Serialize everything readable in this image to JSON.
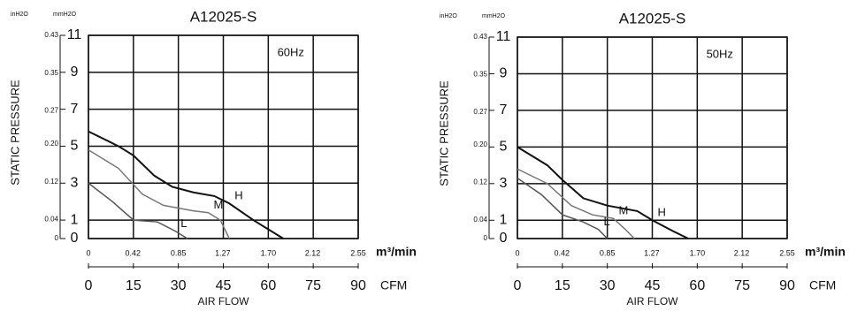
{
  "chart_data": [
    {
      "type": "line",
      "title": "A12025-S",
      "annotation": "60Hz",
      "ylabel": "STATIC PRESSURE",
      "y_unit": "mmH2O",
      "y2_unit": "inH2O",
      "x_unit": "CFM",
      "x2_unit": "m³/min",
      "xlabel": "AIR FLOW",
      "xlim": [
        0,
        90
      ],
      "xticks": [
        0,
        15,
        30,
        45,
        60,
        75,
        90
      ],
      "x2lim": [
        0,
        2.55
      ],
      "x2ticks": [
        0,
        0.42,
        0.85,
        1.27,
        {
          "value": 1.7,
          "label": "1.70"
        },
        2.12,
        2.55
      ],
      "ylim": [
        0,
        11
      ],
      "yticks": [
        0,
        1,
        3,
        5,
        7,
        9,
        11
      ],
      "y2lim": [
        0,
        0.43
      ],
      "y2ticks": [
        0,
        0.04,
        0.12,
        {
          "value": 0.2,
          "label": "0.20"
        },
        0.27,
        0.35,
        0.43
      ],
      "grid": true,
      "series": [
        {
          "name": "H",
          "color": "#111111",
          "x": [
            0,
            10,
            15,
            22,
            28,
            35,
            42,
            47,
            55,
            65
          ],
          "values": [
            5.8,
            5.0,
            4.5,
            3.4,
            2.8,
            2.5,
            2.3,
            1.9,
            1.0,
            0
          ]
        },
        {
          "name": "M",
          "color": "#777777",
          "x": [
            0,
            10,
            18,
            25,
            35,
            40,
            44,
            47
          ],
          "values": [
            4.8,
            3.8,
            2.4,
            1.8,
            1.5,
            1.4,
            1.0,
            0
          ]
        },
        {
          "name": "L",
          "color": "#555555",
          "x": [
            0,
            8,
            15,
            23,
            29,
            33
          ],
          "values": [
            3.0,
            2.0,
            1.0,
            0.9,
            0.4,
            0
          ]
        }
      ]
    },
    {
      "type": "line",
      "title": "A12025-S",
      "annotation": "50Hz",
      "ylabel": "STATIC PRESSURE",
      "y_unit": "mmH2O",
      "y2_unit": "inH2O",
      "x_unit": "CFM",
      "x2_unit": "m³/min",
      "xlabel": "AIR FLOW",
      "xlim": [
        0,
        90
      ],
      "xticks": [
        0,
        15,
        30,
        45,
        60,
        75,
        90
      ],
      "x2lim": [
        0,
        2.55
      ],
      "x2ticks": [
        0,
        0.42,
        0.85,
        1.27,
        {
          "value": 1.7,
          "label": "1.70"
        },
        2.12,
        2.55
      ],
      "ylim": [
        0,
        11
      ],
      "yticks": [
        0,
        1,
        3,
        5,
        7,
        9,
        11
      ],
      "y2lim": [
        0,
        0.43
      ],
      "y2ticks": [
        0,
        0.04,
        0.12,
        {
          "value": 0.2,
          "label": "0.20"
        },
        0.27,
        0.35,
        0.43
      ],
      "grid": true,
      "series": [
        {
          "name": "H",
          "color": "#111111",
          "x": [
            0,
            10,
            15,
            22,
            30,
            40,
            45,
            52,
            57
          ],
          "values": [
            5.0,
            4.0,
            3.2,
            2.2,
            1.8,
            1.5,
            1.0,
            0.4,
            0
          ]
        },
        {
          "name": "M",
          "color": "#777777",
          "x": [
            0,
            10,
            18,
            25,
            32,
            36,
            39
          ],
          "values": [
            3.8,
            3.0,
            1.8,
            1.3,
            1.1,
            0.5,
            0
          ]
        },
        {
          "name": "L",
          "color": "#555555",
          "x": [
            0,
            8,
            15,
            22,
            27,
            30
          ],
          "values": [
            3.3,
            2.4,
            1.3,
            0.9,
            0.5,
            0
          ]
        }
      ]
    }
  ]
}
